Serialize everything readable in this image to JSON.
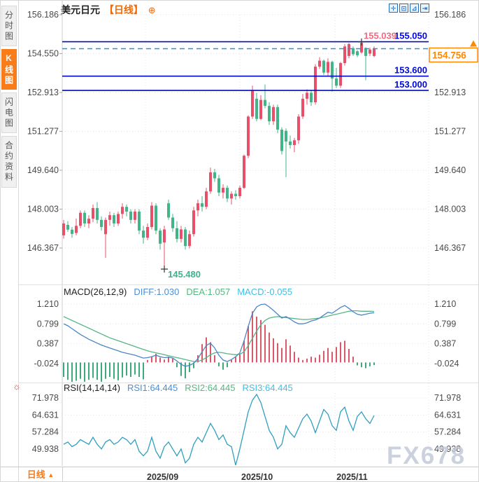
{
  "window": {
    "title": "K线图 chart window"
  },
  "sidebar": {
    "items": [
      {
        "label": "分时图",
        "active": false
      },
      {
        "label": "K线图",
        "active": true
      },
      {
        "label": "闪电图",
        "active": false
      },
      {
        "label": "合约资料",
        "active": false
      }
    ]
  },
  "header": {
    "symbol": "美元日元",
    "period_tag": "【日线】",
    "add_icon": "⊕"
  },
  "toolbar": {
    "icons": [
      {
        "name": "pan-icon",
        "glyph": "✛"
      },
      {
        "name": "zoom-area-icon",
        "glyph": "⊡"
      },
      {
        "name": "indicator-icon",
        "glyph": "⊿"
      },
      {
        "name": "expand-icon",
        "glyph": "⇥"
      }
    ]
  },
  "indicators": {
    "macd": {
      "title": "MACD(26,12,9)",
      "diff": "DIFF:1.030",
      "dea": "DEA:1.057",
      "macd": "MACD:-0.055"
    },
    "rsi": {
      "title": "RSI(14,14,14)",
      "rsi1": "RSI1:64.445",
      "rsi2": "RSI2:64.445",
      "rsi3": "RSI3:64.445"
    },
    "settings_icon": "☼"
  },
  "bottom_bar": {
    "period_label": "日线",
    "dropdown_arrow": "▲"
  },
  "watermark": "FX678",
  "chart_data": {
    "type": "candlestick",
    "symbol": "美元日元 (USD/JPY)",
    "period": "日线",
    "price_axis": {
      "max": 156.186,
      "min": 146.367,
      "ticks": [
        "156.186",
        "154.550",
        "152.913",
        "151.277",
        "149.640",
        "148.003",
        "146.367"
      ]
    },
    "x_axis": {
      "ticks": [
        {
          "label": "2025/09",
          "index": 19.5
        },
        {
          "label": "2025/10",
          "index": 42
        },
        {
          "label": "2025/11",
          "index": 64.7
        }
      ]
    },
    "horizontal_lines": [
      {
        "price": 155.05,
        "label": "155.050"
      },
      {
        "price": 153.6,
        "label": "153.600"
      },
      {
        "price": 153.0,
        "label": "153.000"
      }
    ],
    "current_price": {
      "price": 154.756,
      "label": "154.756"
    },
    "high_marker": {
      "price": 155.039,
      "label": "155.039",
      "index": 71
    },
    "low_marker": {
      "price": 145.48,
      "label": "145.480",
      "index": 24
    },
    "candles": [
      [
        146.9,
        147.55,
        146.76,
        147.4
      ],
      [
        147.34,
        147.5,
        147.05,
        147.14
      ],
      [
        147.14,
        147.25,
        146.8,
        146.96
      ],
      [
        147.0,
        147.6,
        146.9,
        147.3
      ],
      [
        147.3,
        147.95,
        147.2,
        147.85
      ],
      [
        147.85,
        147.95,
        147.25,
        147.4
      ],
      [
        147.4,
        147.75,
        147.2,
        147.6
      ],
      [
        147.6,
        148.2,
        147.45,
        148.05
      ],
      [
        148.05,
        148.3,
        147.4,
        147.55
      ],
      [
        147.55,
        147.7,
        147.1,
        147.25
      ],
      [
        146.95,
        147.65,
        145.95,
        147.55
      ],
      [
        147.55,
        147.9,
        147.3,
        147.75
      ],
      [
        147.75,
        147.85,
        147.25,
        147.4
      ],
      [
        147.4,
        147.9,
        147.3,
        147.8
      ],
      [
        147.8,
        148.25,
        147.6,
        148.1
      ],
      [
        148.1,
        148.2,
        147.7,
        147.9
      ],
      [
        147.9,
        148.0,
        147.4,
        147.55
      ],
      [
        147.55,
        148.0,
        147.4,
        147.9
      ],
      [
        147.9,
        148.0,
        146.95,
        147.1
      ],
      [
        147.1,
        147.3,
        146.55,
        146.8
      ],
      [
        146.8,
        147.4,
        146.7,
        147.25
      ],
      [
        147.25,
        148.3,
        147.15,
        148.15
      ],
      [
        148.15,
        148.25,
        146.95,
        147.1
      ],
      [
        147.1,
        147.2,
        146.3,
        146.55
      ],
      [
        146.6,
        147.3,
        145.48,
        147.15
      ],
      [
        148.25,
        148.4,
        147.55,
        147.65
      ],
      [
        147.65,
        147.8,
        147.05,
        147.2
      ],
      [
        147.2,
        147.5,
        146.6,
        146.75
      ],
      [
        146.75,
        147.3,
        146.6,
        147.15
      ],
      [
        147.15,
        147.25,
        146.3,
        146.45
      ],
      [
        146.45,
        147.1,
        146.35,
        146.95
      ],
      [
        146.95,
        148.1,
        146.85,
        147.95
      ],
      [
        147.95,
        148.4,
        147.7,
        148.25
      ],
      [
        148.25,
        148.55,
        147.9,
        148.1
      ],
      [
        148.1,
        148.9,
        148.0,
        148.75
      ],
      [
        148.75,
        149.75,
        148.65,
        149.55
      ],
      [
        149.55,
        149.7,
        149.15,
        149.3
      ],
      [
        149.3,
        149.45,
        148.55,
        148.7
      ],
      [
        148.7,
        149.05,
        148.45,
        148.9
      ],
      [
        148.9,
        149.0,
        148.3,
        148.45
      ],
      [
        148.45,
        148.75,
        148.2,
        148.65
      ],
      [
        148.65,
        148.8,
        148.4,
        148.55
      ],
      [
        148.55,
        149.0,
        148.45,
        148.9
      ],
      [
        148.9,
        150.3,
        148.85,
        150.25
      ],
      [
        150.25,
        151.95,
        150.15,
        151.9
      ],
      [
        151.9,
        153.2,
        151.8,
        153.0
      ],
      [
        152.65,
        152.9,
        151.7,
        151.8
      ],
      [
        151.8,
        152.8,
        151.75,
        152.6
      ],
      [
        152.6,
        153.25,
        152.25,
        152.35
      ],
      [
        152.35,
        152.5,
        151.55,
        151.7
      ],
      [
        151.7,
        152.4,
        151.55,
        152.3
      ],
      [
        152.3,
        152.4,
        151.2,
        151.35
      ],
      [
        151.35,
        151.45,
        150.3,
        150.45
      ],
      [
        151.3,
        151.4,
        149.35,
        150.85
      ],
      [
        150.85,
        151.1,
        150.55,
        150.7
      ],
      [
        150.7,
        151.0,
        150.4,
        150.9
      ],
      [
        150.9,
        152.0,
        150.75,
        151.9
      ],
      [
        151.9,
        152.85,
        151.8,
        152.65
      ],
      [
        152.65,
        153.05,
        152.4,
        152.9
      ],
      [
        152.9,
        153.0,
        152.35,
        152.5
      ],
      [
        152.5,
        154.1,
        152.4,
        154.0
      ],
      [
        154.0,
        154.4,
        153.9,
        154.25
      ],
      [
        154.25,
        154.3,
        153.65,
        153.75
      ],
      [
        153.75,
        154.35,
        153.6,
        154.2
      ],
      [
        154.2,
        154.25,
        152.95,
        153.5
      ],
      [
        153.5,
        153.95,
        153.1,
        153.2
      ],
      [
        153.2,
        154.2,
        153.1,
        154.15
      ],
      [
        154.15,
        154.95,
        154.05,
        154.85
      ],
      [
        154.45,
        155.0,
        154.35,
        154.95
      ],
      [
        154.78,
        154.85,
        154.45,
        154.52
      ],
      [
        154.65,
        154.7,
        154.4,
        154.48
      ],
      [
        154.6,
        155.039,
        154.55,
        155.0
      ],
      [
        154.78,
        154.82,
        153.43,
        154.45
      ],
      [
        154.55,
        154.8,
        154.45,
        154.72
      ],
      [
        154.45,
        154.85,
        154.4,
        154.756
      ]
    ],
    "macd": {
      "max": 1.21,
      "min": -0.024,
      "axis_ticks": [
        "1.210",
        "0.799",
        "0.387",
        "-0.024"
      ],
      "diff": [
        0.8,
        0.76,
        0.7,
        0.64,
        0.58,
        0.53,
        0.48,
        0.44,
        0.4,
        0.36,
        0.33,
        0.3,
        0.27,
        0.24,
        0.21,
        0.19,
        0.17,
        0.15,
        0.12,
        0.09,
        0.1,
        0.12,
        0.15,
        0.12,
        0.1,
        0.11,
        0.09,
        0.03,
        -0.04,
        -0.08,
        -0.06,
        -0.02,
        0.08,
        0.22,
        0.35,
        0.4,
        0.3,
        0.15,
        0.05,
        0.02,
        0.06,
        0.12,
        0.2,
        0.45,
        0.75,
        1.02,
        1.15,
        1.2,
        1.21,
        1.15,
        1.08,
        1.0,
        0.92,
        0.95,
        0.9,
        0.84,
        0.8,
        0.8,
        0.82,
        0.86,
        0.88,
        0.92,
        0.98,
        1.04,
        1.02,
        1.08,
        1.14,
        1.18,
        1.12,
        1.05,
        1.0,
        0.98,
        1.0,
        1.02,
        1.03
      ],
      "dea": [
        0.95,
        0.91,
        0.87,
        0.83,
        0.79,
        0.75,
        0.71,
        0.67,
        0.63,
        0.59,
        0.55,
        0.51,
        0.48,
        0.45,
        0.42,
        0.39,
        0.36,
        0.33,
        0.3,
        0.27,
        0.24,
        0.22,
        0.2,
        0.18,
        0.16,
        0.14,
        0.12,
        0.1,
        0.08,
        0.06,
        0.04,
        0.02,
        0.02,
        0.05,
        0.1,
        0.16,
        0.2,
        0.21,
        0.2,
        0.18,
        0.17,
        0.16,
        0.17,
        0.22,
        0.35,
        0.5,
        0.65,
        0.78,
        0.87,
        0.92,
        0.94,
        0.95,
        0.94,
        0.93,
        0.92,
        0.91,
        0.9,
        0.89,
        0.89,
        0.9,
        0.91,
        0.92,
        0.94,
        0.96,
        0.98,
        1.0,
        1.02,
        1.04,
        1.06,
        1.07,
        1.07,
        1.06,
        1.06,
        1.06,
        1.057
      ],
      "hist": [
        -0.3,
        -0.36,
        -0.42,
        -0.38,
        -0.34,
        -0.4,
        -0.36,
        -0.32,
        -0.36,
        -0.4,
        -0.34,
        -0.3,
        -0.34,
        -0.37,
        -0.31,
        -0.27,
        -0.3,
        -0.25,
        -0.3,
        -0.35,
        0.05,
        0.12,
        0.18,
        0.1,
        0.06,
        0.12,
        0.08,
        -0.1,
        -0.28,
        -0.33,
        -0.2,
        -0.12,
        0.15,
        0.38,
        0.52,
        0.42,
        0.15,
        -0.08,
        -0.15,
        -0.1,
        0.05,
        0.12,
        0.18,
        0.45,
        0.75,
        1.06,
        0.95,
        0.88,
        0.78,
        0.62,
        0.5,
        0.4,
        0.3,
        0.48,
        0.35,
        0.22,
        0.1,
        0.05,
        0.08,
        0.12,
        0.1,
        0.16,
        0.24,
        0.3,
        0.22,
        0.32,
        0.42,
        0.45,
        0.28,
        0.12,
        -0.06,
        -0.1,
        -0.12,
        -0.08,
        -0.055
      ]
    },
    "rsi": {
      "max": 71.978,
      "min": 49.938,
      "axis_ticks": [
        "71.978",
        "64.631",
        "57.284",
        "49.938"
      ],
      "values": [
        52,
        53,
        51,
        52,
        54,
        53,
        52,
        55,
        52,
        50,
        53,
        54,
        52,
        53,
        55,
        54,
        52,
        54,
        49,
        47,
        49,
        55,
        49,
        46,
        51,
        53,
        50,
        47,
        50,
        44,
        46,
        52,
        55,
        53,
        57,
        61,
        58,
        54,
        56,
        52,
        51,
        43,
        50,
        58,
        66,
        71,
        73.5,
        70,
        64,
        58,
        55,
        50,
        52,
        60,
        57,
        55,
        59,
        63,
        65,
        62,
        57,
        62,
        67,
        65,
        60,
        58,
        66,
        68,
        62,
        58,
        64,
        66,
        63,
        61,
        64.445
      ]
    },
    "colors": {
      "up": "#e8506a",
      "down": "#42b586",
      "nav_line": "#0008c8",
      "nav_label": "#0008e0",
      "dashed_line": "#2196e0",
      "current": "#ff8800",
      "diff_line": "#4a86c7",
      "dea_line": "#57b584",
      "hist_up": "#d9596b",
      "hist_down": "#3fa97c",
      "rsi_line": "#2f9fc0",
      "high_label": "#ef6a80",
      "low_label": "#3cb389",
      "grid": "#e3e3e3",
      "axis_text": "#4a4a4a",
      "date_text": "#333333"
    }
  }
}
